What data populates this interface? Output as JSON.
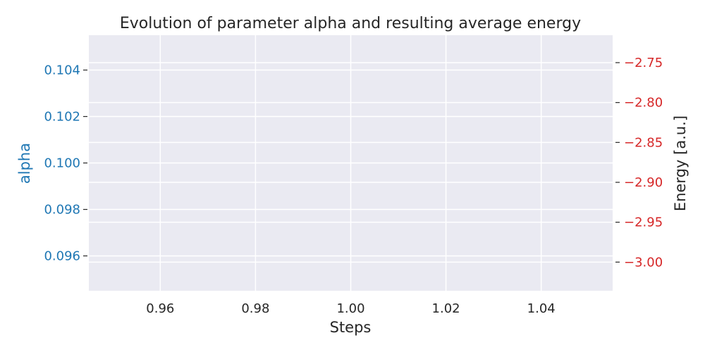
{
  "chart_data": {
    "type": "line",
    "title": "Evolution of parameter alpha and resulting average energy",
    "xlabel": "Steps",
    "xlim": [
      0.945,
      1.055
    ],
    "xticks": [
      0.96,
      0.98,
      1.0,
      1.02,
      1.04
    ],
    "xtick_labels": [
      "0.96",
      "0.98",
      "1.00",
      "1.02",
      "1.04"
    ],
    "y_left": {
      "label": "alpha",
      "color": "#1f77b4",
      "ylim": [
        0.0945,
        0.1055
      ],
      "ticks": [
        0.096,
        0.098,
        0.1,
        0.102,
        0.104
      ],
      "tick_labels": [
        "0.096",
        "0.098",
        "0.100",
        "0.102",
        "0.104"
      ]
    },
    "y_right": {
      "label": "Energy [a.u.]",
      "color": "#d62728",
      "label_color": "#262626",
      "ylim": [
        -3.0359,
        -2.7156
      ],
      "ticks": [
        -3.0,
        -2.95,
        -2.9,
        -2.85,
        -2.8,
        -2.75
      ],
      "tick_labels": [
        "−3.00",
        "−2.95",
        "−2.90",
        "−2.85",
        "−2.80",
        "−2.75"
      ]
    },
    "series": [],
    "grid": true,
    "background": "#eaeaf2"
  }
}
